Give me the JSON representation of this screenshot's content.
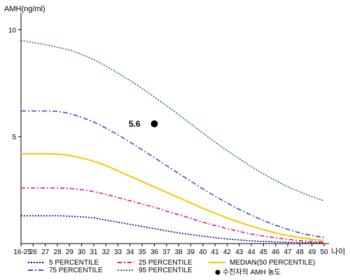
{
  "chart_data": {
    "type": "line",
    "ylabel": "AMH(ng/ml)",
    "xlabel": "나이",
    "ylim": [
      0,
      10.8
    ],
    "yticks": [
      5,
      10
    ],
    "grid": false,
    "legend_position": "bottom",
    "x_tick_labels": [
      "16-25",
      "26",
      "27",
      "28",
      "29",
      "30",
      "31",
      "32",
      "33",
      "34",
      "35",
      "36",
      "37",
      "38",
      "39",
      "40",
      "41",
      "42",
      "43",
      "44",
      "45",
      "46",
      "47",
      "48",
      "49",
      "50"
    ],
    "series": [
      {
        "name": "5 PERCENTILE",
        "color": "#000080",
        "dash": "2,2",
        "values": [
          1.3,
          1.3,
          1.3,
          1.3,
          1.28,
          1.25,
          1.2,
          1.1,
          1.0,
          0.9,
          0.8,
          0.7,
          0.6,
          0.5,
          0.42,
          0.35,
          0.28,
          0.22,
          0.17,
          0.13,
          0.1,
          0.08,
          0.06,
          0.05,
          0.04,
          0.04
        ]
      },
      {
        "name": "25 PERCENTILE",
        "color": "#e0127f",
        "dash": "6,3,2,3",
        "values": [
          2.6,
          2.6,
          2.6,
          2.6,
          2.58,
          2.52,
          2.43,
          2.3,
          2.15,
          2.0,
          1.85,
          1.7,
          1.52,
          1.35,
          1.18,
          1.0,
          0.85,
          0.7,
          0.57,
          0.45,
          0.35,
          0.27,
          0.2,
          0.14,
          0.1,
          0.07
        ]
      },
      {
        "name": "MEDIAN(50 PERCENTILE)",
        "color": "#f5c800",
        "dash": "",
        "values": [
          4.2,
          4.2,
          4.2,
          4.18,
          4.12,
          4.0,
          3.85,
          3.65,
          3.4,
          3.15,
          2.9,
          2.65,
          2.4,
          2.15,
          1.9,
          1.65,
          1.42,
          1.2,
          1.0,
          0.82,
          0.65,
          0.5,
          0.38,
          0.28,
          0.2,
          0.14
        ]
      },
      {
        "name": "75 PERCENTILE",
        "color": "#3355bb",
        "dash": "7,3,2,3",
        "values": [
          6.2,
          6.2,
          6.2,
          6.18,
          6.08,
          5.9,
          5.68,
          5.4,
          5.08,
          4.74,
          4.38,
          4.02,
          3.65,
          3.28,
          2.92,
          2.56,
          2.22,
          1.9,
          1.6,
          1.33,
          1.08,
          0.86,
          0.67,
          0.5,
          0.38,
          0.28
        ]
      },
      {
        "name": "95 PERCENTILE",
        "color": "#227744",
        "dash": "2,2",
        "values": [
          9.5,
          9.4,
          9.3,
          9.18,
          9.05,
          8.85,
          8.6,
          8.3,
          7.97,
          7.62,
          7.25,
          6.85,
          6.45,
          6.03,
          5.6,
          5.17,
          4.75,
          4.35,
          3.97,
          3.6,
          3.26,
          2.95,
          2.66,
          2.42,
          2.2,
          2.0
        ]
      }
    ],
    "point": {
      "label": "5.6",
      "x": "36",
      "y": 5.6,
      "color": "#000000"
    },
    "legend_marker_label": "수진자의 AMH 농도"
  }
}
